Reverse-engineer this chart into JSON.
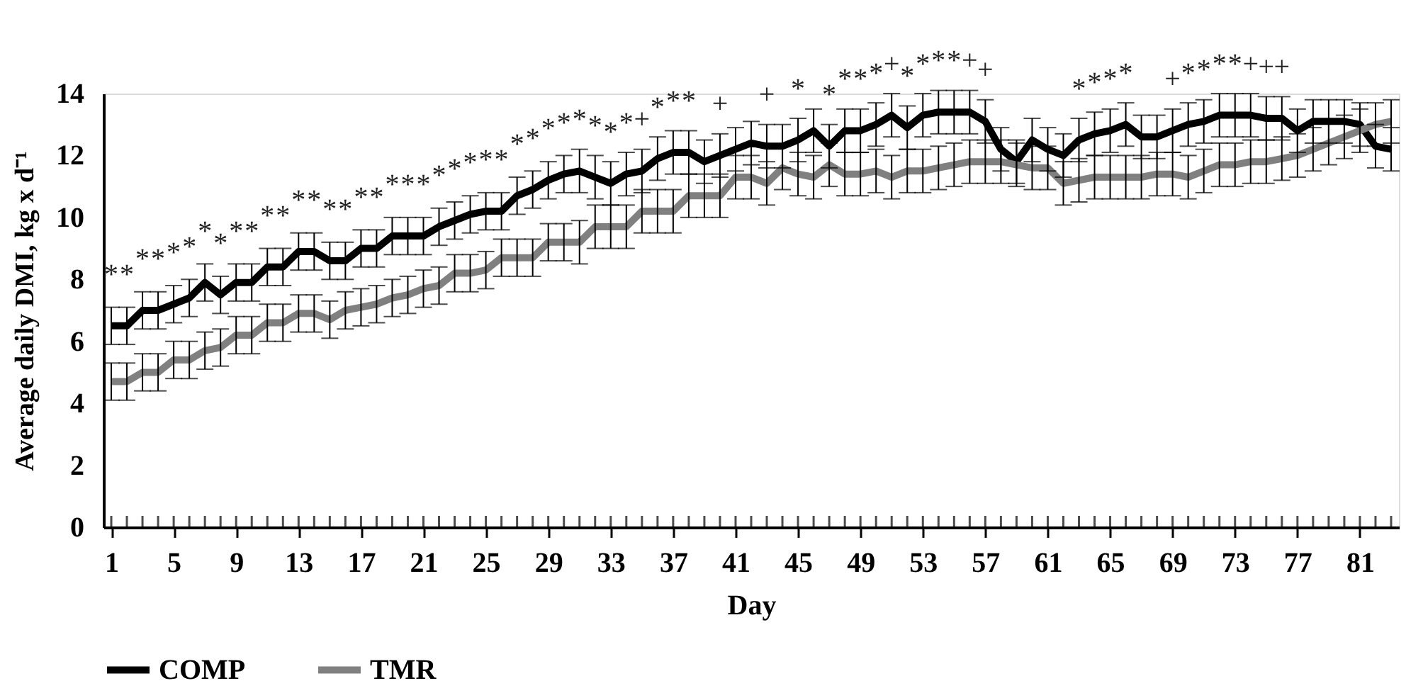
{
  "chart_data": {
    "type": "line",
    "xlabel": "Day",
    "ylabel": "Average daily DMI, kg x d⁻¹",
    "x": [
      1,
      2,
      3,
      4,
      5,
      6,
      7,
      8,
      9,
      10,
      11,
      12,
      13,
      14,
      15,
      16,
      17,
      18,
      19,
      20,
      21,
      22,
      23,
      24,
      25,
      26,
      27,
      28,
      29,
      30,
      31,
      32,
      33,
      34,
      35,
      36,
      37,
      38,
      39,
      40,
      41,
      42,
      43,
      44,
      45,
      46,
      47,
      48,
      49,
      50,
      51,
      52,
      53,
      54,
      55,
      56,
      57,
      58,
      59,
      60,
      61,
      62,
      63,
      64,
      65,
      66,
      67,
      68,
      69,
      70,
      71,
      72,
      73,
      74,
      75,
      76,
      77,
      78,
      79,
      80,
      81,
      82,
      83
    ],
    "series": [
      {
        "name": "COMP",
        "color": "#000000",
        "values": [
          6.5,
          6.5,
          7.0,
          7.0,
          7.2,
          7.4,
          7.9,
          7.5,
          7.9,
          7.9,
          8.4,
          8.4,
          8.9,
          8.9,
          8.6,
          8.6,
          9.0,
          9.0,
          9.4,
          9.4,
          9.4,
          9.7,
          9.9,
          10.1,
          10.2,
          10.2,
          10.7,
          10.9,
          11.2,
          11.4,
          11.5,
          11.3,
          11.1,
          11.4,
          11.5,
          11.9,
          12.1,
          12.1,
          11.8,
          12.0,
          12.2,
          12.4,
          12.3,
          12.3,
          12.5,
          12.8,
          12.3,
          12.8,
          12.8,
          13.0,
          13.3,
          12.9,
          13.3,
          13.4,
          13.4,
          13.4,
          13.1,
          12.2,
          11.8,
          12.5,
          12.2,
          12.0,
          12.5,
          12.7,
          12.8,
          13.0,
          12.6,
          12.6,
          12.8,
          13.0,
          13.1,
          13.3,
          13.3,
          13.3,
          13.2,
          13.2,
          12.8,
          13.1,
          13.1,
          13.1,
          13.0,
          12.3,
          12.2
        ],
        "errors": [
          0.6,
          0.6,
          0.6,
          0.6,
          0.6,
          0.6,
          0.6,
          0.6,
          0.6,
          0.6,
          0.6,
          0.6,
          0.6,
          0.6,
          0.6,
          0.6,
          0.6,
          0.6,
          0.6,
          0.6,
          0.6,
          0.6,
          0.6,
          0.6,
          0.6,
          0.6,
          0.6,
          0.6,
          0.6,
          0.6,
          0.7,
          0.7,
          0.7,
          0.7,
          0.7,
          0.7,
          0.7,
          0.7,
          0.7,
          0.7,
          0.7,
          0.7,
          0.7,
          0.7,
          0.7,
          0.7,
          0.7,
          0.7,
          0.7,
          0.7,
          0.7,
          0.7,
          0.7,
          0.7,
          0.7,
          0.7,
          0.7,
          0.7,
          0.7,
          0.7,
          0.7,
          0.7,
          0.7,
          0.7,
          0.7,
          0.7,
          0.7,
          0.7,
          0.7,
          0.7,
          0.7,
          0.7,
          0.7,
          0.7,
          0.7,
          0.7,
          0.7,
          0.7,
          0.7,
          0.7,
          0.7,
          0.7,
          0.7
        ]
      },
      {
        "name": "TMR",
        "color": "#808080",
        "values": [
          4.7,
          4.7,
          5.0,
          5.0,
          5.4,
          5.4,
          5.7,
          5.8,
          6.2,
          6.2,
          6.6,
          6.6,
          6.9,
          6.9,
          6.7,
          7.0,
          7.1,
          7.2,
          7.4,
          7.5,
          7.7,
          7.8,
          8.2,
          8.2,
          8.3,
          8.7,
          8.7,
          8.7,
          9.2,
          9.2,
          9.2,
          9.7,
          9.7,
          9.7,
          10.2,
          10.2,
          10.2,
          10.7,
          10.7,
          10.7,
          11.3,
          11.3,
          11.1,
          11.6,
          11.4,
          11.3,
          11.7,
          11.4,
          11.4,
          11.5,
          11.3,
          11.5,
          11.5,
          11.6,
          11.7,
          11.8,
          11.8,
          11.8,
          11.7,
          11.6,
          11.6,
          11.1,
          11.2,
          11.3,
          11.3,
          11.3,
          11.3,
          11.4,
          11.4,
          11.3,
          11.5,
          11.7,
          11.7,
          11.8,
          11.8,
          11.9,
          12.0,
          12.2,
          12.4,
          12.6,
          12.8,
          13.0,
          13.1
        ],
        "errors": [
          0.6,
          0.6,
          0.6,
          0.6,
          0.6,
          0.6,
          0.6,
          0.6,
          0.6,
          0.6,
          0.6,
          0.6,
          0.6,
          0.6,
          0.6,
          0.6,
          0.6,
          0.6,
          0.6,
          0.6,
          0.6,
          0.6,
          0.6,
          0.6,
          0.6,
          0.6,
          0.6,
          0.6,
          0.6,
          0.6,
          0.7,
          0.7,
          0.7,
          0.7,
          0.7,
          0.7,
          0.7,
          0.7,
          0.7,
          0.7,
          0.7,
          0.7,
          0.7,
          0.7,
          0.7,
          0.7,
          0.7,
          0.7,
          0.7,
          0.7,
          0.7,
          0.7,
          0.7,
          0.7,
          0.7,
          0.7,
          0.7,
          0.7,
          0.7,
          0.7,
          0.7,
          0.7,
          0.7,
          0.7,
          0.7,
          0.7,
          0.7,
          0.7,
          0.7,
          0.7,
          0.7,
          0.7,
          0.7,
          0.7,
          0.7,
          0.7,
          0.7,
          0.7,
          0.7,
          0.7,
          0.7,
          0.7,
          0.7
        ]
      }
    ],
    "xlim": [
      0.5,
      83.5
    ],
    "xticks": [
      1,
      {
        "value": 2,
        "label": null
      },
      {
        "value": 3,
        "label": null
      },
      {
        "value": 4,
        "label": null
      },
      5,
      {
        "value": 6,
        "label": null
      },
      {
        "value": 7,
        "label": null
      },
      {
        "value": 8,
        "label": null
      },
      9,
      {
        "value": 10,
        "label": null
      },
      {
        "value": 11,
        "label": null
      },
      {
        "value": 12,
        "label": null
      },
      13,
      {
        "value": 14,
        "label": null
      },
      {
        "value": 15,
        "label": null
      },
      {
        "value": 16,
        "label": null
      },
      17,
      {
        "value": 18,
        "label": null
      },
      {
        "value": 19,
        "label": null
      },
      {
        "value": 20,
        "label": null
      },
      21,
      {
        "value": 22,
        "label": null
      },
      {
        "value": 23,
        "label": null
      },
      {
        "value": 24,
        "label": null
      },
      25,
      {
        "value": 26,
        "label": null
      },
      {
        "value": 27,
        "label": null
      },
      {
        "value": 28,
        "label": null
      },
      29,
      {
        "value": 30,
        "label": null
      },
      {
        "value": 31,
        "label": null
      },
      {
        "value": 32,
        "label": null
      },
      33,
      {
        "value": 34,
        "label": null
      },
      {
        "value": 35,
        "label": null
      },
      {
        "value": 36,
        "label": null
      },
      37,
      {
        "value": 38,
        "label": null
      },
      {
        "value": 39,
        "label": null
      },
      {
        "value": 40,
        "label": null
      },
      41,
      {
        "value": 42,
        "label": null
      },
      {
        "value": 43,
        "label": null
      },
      {
        "value": 44,
        "label": null
      },
      45,
      {
        "value": 46,
        "label": null
      },
      {
        "value": 47,
        "label": null
      },
      {
        "value": 48,
        "label": null
      },
      49,
      {
        "value": 50,
        "label": null
      },
      {
        "value": 51,
        "label": null
      },
      {
        "value": 52,
        "label": null
      },
      53,
      {
        "value": 54,
        "label": null
      },
      {
        "value": 55,
        "label": null
      },
      {
        "value": 56,
        "label": null
      },
      57,
      {
        "value": 58,
        "label": null
      },
      {
        "value": 59,
        "label": null
      },
      {
        "value": 60,
        "label": null
      },
      61,
      {
        "value": 62,
        "label": null
      },
      {
        "value": 63,
        "label": null
      },
      {
        "value": 64,
        "label": null
      },
      65,
      {
        "value": 66,
        "label": null
      },
      {
        "value": 67,
        "label": null
      },
      {
        "value": 68,
        "label": null
      },
      69,
      {
        "value": 70,
        "label": null
      },
      {
        "value": 71,
        "label": null
      },
      {
        "value": 72,
        "label": null
      },
      73,
      {
        "value": 74,
        "label": null
      },
      {
        "value": 75,
        "label": null
      },
      {
        "value": 76,
        "label": null
      },
      77,
      {
        "value": 78,
        "label": null
      },
      {
        "value": 79,
        "label": null
      },
      {
        "value": 80,
        "label": null
      },
      81,
      {
        "value": 82,
        "label": null
      },
      {
        "value": 83,
        "label": null
      }
    ],
    "ylim": [
      0,
      14
    ],
    "yticks": [
      0,
      2,
      4,
      6,
      8,
      10,
      12,
      14
    ],
    "grid": false,
    "legend": "bottom",
    "marker": "none",
    "line_style": "solid",
    "annotations": [
      {
        "text": "*",
        "x": 1,
        "y": 6.5
      },
      {
        "text": "*",
        "x": 2,
        "y": 6.5
      },
      {
        "text": "*",
        "x": 3,
        "y": 7.0
      },
      {
        "text": "*",
        "x": 4,
        "y": 7.0
      },
      {
        "text": "*",
        "x": 5,
        "y": 7.2
      },
      {
        "text": "*",
        "x": 6,
        "y": 7.4
      },
      {
        "text": "*",
        "x": 7,
        "y": 7.9
      },
      {
        "text": "*",
        "x": 8,
        "y": 7.5
      },
      {
        "text": "*",
        "x": 9,
        "y": 7.9
      },
      {
        "text": "*",
        "x": 10,
        "y": 7.9
      },
      {
        "text": "*",
        "x": 11,
        "y": 8.4
      },
      {
        "text": "*",
        "x": 12,
        "y": 8.4
      },
      {
        "text": "*",
        "x": 13,
        "y": 8.9
      },
      {
        "text": "*",
        "x": 14,
        "y": 8.9
      },
      {
        "text": "*",
        "x": 15,
        "y": 8.6
      },
      {
        "text": "*",
        "x": 16,
        "y": 8.6
      },
      {
        "text": "*",
        "x": 17,
        "y": 9.0
      },
      {
        "text": "*",
        "x": 18,
        "y": 9.0
      },
      {
        "text": "*",
        "x": 19,
        "y": 9.4
      },
      {
        "text": "*",
        "x": 20,
        "y": 9.4
      },
      {
        "text": "*",
        "x": 21,
        "y": 9.4
      },
      {
        "text": "*",
        "x": 22,
        "y": 9.7
      },
      {
        "text": "*",
        "x": 23,
        "y": 9.9
      },
      {
        "text": "*",
        "x": 24,
        "y": 10.1
      },
      {
        "text": "*",
        "x": 25,
        "y": 10.2
      },
      {
        "text": "*",
        "x": 26,
        "y": 10.2
      },
      {
        "text": "*",
        "x": 27,
        "y": 10.7
      },
      {
        "text": "*",
        "x": 28,
        "y": 10.9
      },
      {
        "text": "*",
        "x": 29,
        "y": 11.2
      },
      {
        "text": "*",
        "x": 30,
        "y": 11.4
      },
      {
        "text": "*",
        "x": 31,
        "y": 11.5
      },
      {
        "text": "*",
        "x": 32,
        "y": 11.3
      },
      {
        "text": "*",
        "x": 33,
        "y": 11.1
      },
      {
        "text": "*",
        "x": 34,
        "y": 11.4
      },
      {
        "text": "+",
        "x": 35,
        "y": 11.5
      },
      {
        "text": "*",
        "x": 36,
        "y": 11.9
      },
      {
        "text": "*",
        "x": 37,
        "y": 12.1
      },
      {
        "text": "*",
        "x": 38,
        "y": 12.1
      },
      {
        "text": "+",
        "x": 40,
        "y": 12.0
      },
      {
        "text": "+",
        "x": 43,
        "y": 12.3
      },
      {
        "text": "*",
        "x": 45,
        "y": 12.5
      },
      {
        "text": "*",
        "x": 47,
        "y": 12.3
      },
      {
        "text": "*",
        "x": 48,
        "y": 12.8
      },
      {
        "text": "*",
        "x": 49,
        "y": 12.8
      },
      {
        "text": "*",
        "x": 50,
        "y": 13.0
      },
      {
        "text": "+",
        "x": 51,
        "y": 13.3
      },
      {
        "text": "*",
        "x": 52,
        "y": 12.9
      },
      {
        "text": "*",
        "x": 53,
        "y": 13.3
      },
      {
        "text": "*",
        "x": 54,
        "y": 13.4
      },
      {
        "text": "*",
        "x": 55,
        "y": 13.4
      },
      {
        "text": "+",
        "x": 56,
        "y": 13.4
      },
      {
        "text": "+",
        "x": 57,
        "y": 13.1
      },
      {
        "text": "*",
        "x": 63,
        "y": 12.5
      },
      {
        "text": "*",
        "x": 64,
        "y": 12.7
      },
      {
        "text": "*",
        "x": 65,
        "y": 12.8
      },
      {
        "text": "*",
        "x": 66,
        "y": 13.0
      },
      {
        "text": "+",
        "x": 69,
        "y": 12.8
      },
      {
        "text": "*",
        "x": 70,
        "y": 13.0
      },
      {
        "text": "*",
        "x": 71,
        "y": 13.1
      },
      {
        "text": "*",
        "x": 72,
        "y": 13.3
      },
      {
        "text": "*",
        "x": 73,
        "y": 13.3
      },
      {
        "text": "+",
        "x": 74,
        "y": 13.3
      },
      {
        "text": "+",
        "x": 75,
        "y": 13.2
      },
      {
        "text": "+",
        "x": 76,
        "y": 13.2
      }
    ]
  }
}
